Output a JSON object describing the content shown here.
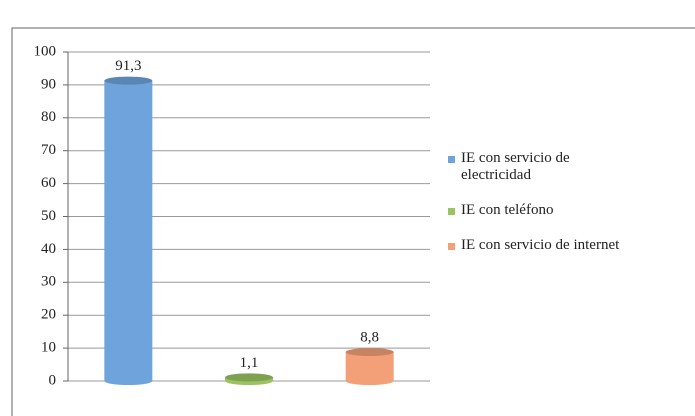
{
  "chart_data": {
    "type": "bar",
    "series": [
      {
        "name": "IE con servicio de electricidad",
        "color": "#6fa3dc",
        "values": [
          91.3
        ],
        "value_labels": [
          "91,3"
        ]
      },
      {
        "name": "IE con teléfono",
        "color": "#9bc361",
        "values": [
          1.1
        ],
        "value_labels": [
          "1,1"
        ]
      },
      {
        "name": "IE con servicio de internet",
        "color": "#f3a078",
        "values": [
          8.8
        ],
        "value_labels": [
          "8,8"
        ]
      }
    ],
    "ylim": [
      0,
      100
    ],
    "yticks": [
      0,
      10,
      20,
      30,
      40,
      50,
      60,
      70,
      80,
      90,
      100
    ],
    "grid": true
  }
}
